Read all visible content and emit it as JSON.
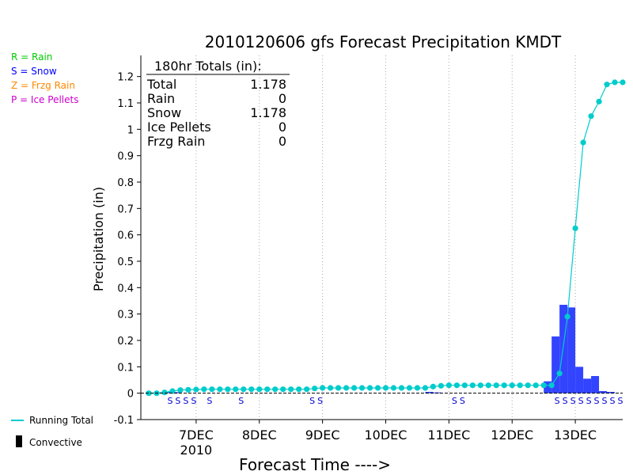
{
  "legend": {
    "items": [
      {
        "text": "R = Rain",
        "color": "#00cc00"
      },
      {
        "text": "S = Snow",
        "color": "#0000ff"
      },
      {
        "text": "Z = Frzg Rain",
        "color": "#ff8800"
      },
      {
        "text": "P = Ice Pellets",
        "color": "#cc00cc"
      }
    ],
    "running_total_label": "Running Total",
    "convective_label": "Convective"
  },
  "totals_box": {
    "header": "180hr Totals (in):",
    "rows": [
      {
        "label": "Total",
        "value": "1.178"
      },
      {
        "label": "Rain",
        "value": "0"
      },
      {
        "label": "Snow",
        "value": "1.178"
      },
      {
        "label": "Ice Pellets",
        "value": "0"
      },
      {
        "label": "Frzg Rain",
        "value": "0"
      }
    ]
  },
  "colors": {
    "bar": "#3344ff",
    "line": "#00cccc",
    "snow_label": "#0000cc",
    "grid": "#aaaaaa"
  },
  "chart_data": {
    "type": "bar",
    "title": "2010120606 gfs Forecast Precipitation KMDT",
    "xlabel": "Forecast Time ---->",
    "ylabel": "Precipitation (in)",
    "ylim": [
      -0.1,
      1.28
    ],
    "yticks": [
      -0.1,
      0,
      0.1,
      0.2,
      0.3,
      0.4,
      0.5,
      0.6,
      0.7,
      0.8,
      0.9,
      1,
      1.1,
      1.2
    ],
    "ytick_labels": [
      "-0.1",
      "0",
      "0.1",
      "0.2",
      "0.3",
      "0.4",
      "0.5",
      "0.6",
      "0.7",
      "0.8",
      "0.9",
      "1",
      "1.1",
      "1.2"
    ],
    "x_unit": "forecast hour",
    "xlim": [
      -3,
      180
    ],
    "day_ticks": [
      {
        "hour": 18,
        "label": "7DEC",
        "sublabel": "2010"
      },
      {
        "hour": 42,
        "label": "8DEC",
        "sublabel": ""
      },
      {
        "hour": 66,
        "label": "9DEC",
        "sublabel": ""
      },
      {
        "hour": 90,
        "label": "10DEC",
        "sublabel": ""
      },
      {
        "hour": 114,
        "label": "11DEC",
        "sublabel": ""
      },
      {
        "hour": 138,
        "label": "12DEC",
        "sublabel": ""
      },
      {
        "hour": 162,
        "label": "13DEC",
        "sublabel": ""
      }
    ],
    "grid": true,
    "legend_position": "left",
    "series": [
      {
        "name": "Running Total",
        "type": "line",
        "x": [
          0,
          3,
          6,
          9,
          12,
          15,
          18,
          21,
          24,
          27,
          30,
          33,
          36,
          39,
          42,
          45,
          48,
          51,
          54,
          57,
          60,
          63,
          66,
          69,
          72,
          75,
          78,
          81,
          84,
          87,
          90,
          93,
          96,
          99,
          102,
          105,
          108,
          111,
          114,
          117,
          120,
          123,
          126,
          129,
          132,
          135,
          138,
          141,
          144,
          147,
          150,
          153,
          156,
          159,
          162,
          165,
          168,
          171,
          174,
          177,
          180
        ],
        "values": [
          0,
          0,
          0.003,
          0.008,
          0.012,
          0.013,
          0.014,
          0.015,
          0.015,
          0.015,
          0.015,
          0.015,
          0.015,
          0.015,
          0.015,
          0.015,
          0.015,
          0.015,
          0.015,
          0.015,
          0.015,
          0.018,
          0.02,
          0.02,
          0.02,
          0.02,
          0.02,
          0.02,
          0.02,
          0.02,
          0.02,
          0.02,
          0.02,
          0.02,
          0.02,
          0.02,
          0.025,
          0.028,
          0.03,
          0.03,
          0.03,
          0.03,
          0.03,
          0.03,
          0.03,
          0.03,
          0.03,
          0.03,
          0.03,
          0.03,
          0.03,
          0.03,
          0.075,
          0.29,
          0.625,
          0.95,
          1.05,
          1.105,
          1.17,
          1.178,
          1.178
        ]
      },
      {
        "name": "Precipitation",
        "type": "bar",
        "x": [
          6,
          9,
          12,
          108,
          111,
          153,
          156,
          159,
          162,
          165,
          168,
          171,
          174,
          177,
          180
        ],
        "values": [
          0.003,
          0.005,
          0.004,
          0.005,
          0.003,
          0.045,
          0.215,
          0.335,
          0.325,
          0.1,
          0.055,
          0.065,
          0.008,
          0.005,
          0
        ],
        "bar_width_hours": 3
      }
    ],
    "precip_type_labels": {
      "text": "S",
      "hours": [
        9,
        12,
        15,
        18,
        24,
        36,
        63,
        66,
        117,
        120,
        156,
        159,
        162,
        165,
        168,
        171,
        174,
        177,
        180
      ]
    },
    "totals": {
      "Total": 1.178,
      "Rain": 0,
      "Snow": 1.178,
      "Ice Pellets": 0,
      "Frzg Rain": 0
    }
  }
}
